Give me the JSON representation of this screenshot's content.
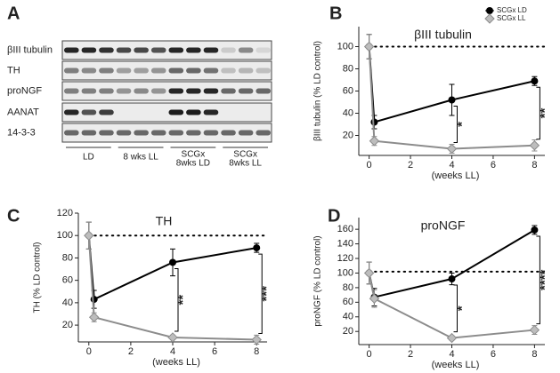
{
  "blot": {
    "panel_label": "A",
    "rows": [
      "βIII tubulin",
      "TH",
      "proNGF",
      "AANAT",
      "14-3-3"
    ],
    "groups": [
      [
        "LD"
      ],
      [
        "8 wks LL"
      ],
      [
        "SCGx",
        "8wks LD"
      ],
      [
        "SCGx",
        "8wks LL"
      ]
    ]
  },
  "chart_data": [
    {
      "type": "line",
      "panel_label": "B",
      "title": "βIII tubulin",
      "y_label": "βIII tubulin (% LD control)",
      "x_label": "(weeks LL)",
      "x": [
        0,
        0.25,
        4,
        8
      ],
      "xlim": [
        -0.5,
        8.5
      ],
      "xticks": [
        0,
        2,
        4,
        6,
        8
      ],
      "ylim": [
        2,
        118
      ],
      "yticks": [
        20,
        40,
        60,
        80,
        100
      ],
      "reference_line": 100,
      "legend": "upper right",
      "series": [
        {
          "name": "SCGx LD",
          "color": "#000000",
          "marker": "circle",
          "values": [
            100,
            32,
            52,
            69
          ],
          "errors": [
            11,
            6,
            14,
            4
          ]
        },
        {
          "name": "SCGx LL",
          "color": "#8c8c8c",
          "marker": "diamond",
          "values": [
            100,
            15,
            8,
            11
          ],
          "errors": [
            11,
            4,
            4,
            5
          ]
        }
      ],
      "significance": [
        {
          "x": 4,
          "label": "*"
        },
        {
          "x": 8,
          "label": "**"
        }
      ]
    },
    {
      "type": "line",
      "panel_label": "C",
      "title": "TH",
      "y_label": "TH (% LD control)",
      "x_label": "(weeks LL)",
      "x": [
        0,
        0.25,
        4,
        8
      ],
      "xlim": [
        -0.5,
        8.5
      ],
      "xticks": [
        0,
        2,
        4,
        6,
        8
      ],
      "ylim": [
        5,
        120
      ],
      "yticks": [
        20,
        40,
        60,
        80,
        100,
        120
      ],
      "reference_line": 100,
      "series": [
        {
          "color": "#000000",
          "marker": "circle",
          "values": [
            100,
            43,
            76,
            89
          ],
          "errors": [
            12,
            8,
            12,
            4
          ]
        },
        {
          "color": "#8c8c8c",
          "marker": "diamond",
          "values": [
            100,
            27,
            9,
            7
          ],
          "errors": [
            12,
            4,
            2,
            4
          ]
        }
      ],
      "significance": [
        {
          "x": 4,
          "label": "**"
        },
        {
          "x": 8,
          "label": "***"
        }
      ]
    },
    {
      "type": "line",
      "panel_label": "D",
      "title": "proNGF",
      "y_label": "proNGF (% LD control)",
      "x_label": "(weeks LL)",
      "x": [
        0,
        0.25,
        4,
        8
      ],
      "xlim": [
        -0.5,
        8.5
      ],
      "xticks": [
        0,
        2,
        4,
        6,
        8
      ],
      "ylim": [
        2,
        176
      ],
      "yticks": [
        20,
        40,
        60,
        80,
        100,
        120,
        140,
        160
      ],
      "reference_line": 102,
      "series": [
        {
          "color": "#000000",
          "marker": "circle",
          "values": [
            100,
            67,
            92,
            159
          ],
          "errors": [
            15,
            12,
            8,
            6
          ]
        },
        {
          "color": "#8c8c8c",
          "marker": "diamond",
          "values": [
            100,
            65,
            11,
            22
          ],
          "errors": [
            15,
            12,
            3,
            6
          ]
        }
      ],
      "significance": [
        {
          "x": 4,
          "label": "*"
        },
        {
          "x": 8,
          "label": "****"
        }
      ]
    }
  ]
}
